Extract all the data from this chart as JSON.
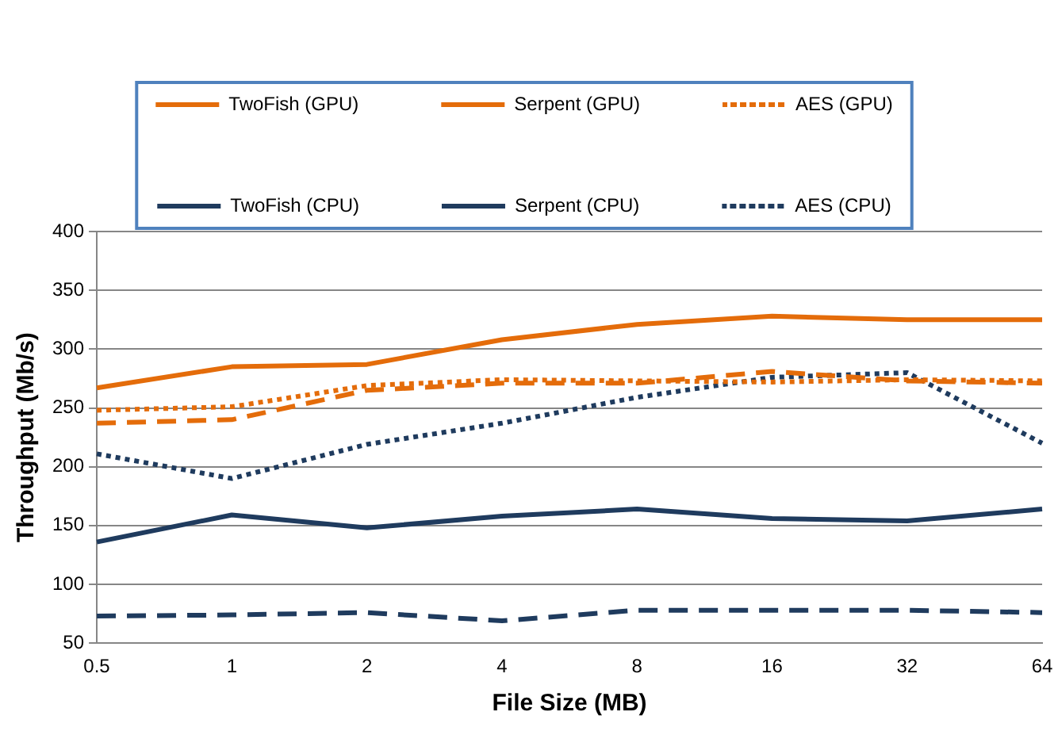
{
  "chart_data": {
    "type": "line",
    "xlabel": "File Size (MB)",
    "ylabel": "Throughput (Mb/s)",
    "categories": [
      "0.5",
      "1",
      "2",
      "4",
      "8",
      "16",
      "32",
      "64"
    ],
    "ylim": [
      50,
      400
    ],
    "yticks": [
      50,
      100,
      150,
      200,
      250,
      300,
      350,
      400
    ],
    "grid": "y",
    "legend": "top",
    "marker": "none",
    "series": [
      {
        "name": "TwoFish (GPU)",
        "color": "#e46c0a",
        "line_style": "solid",
        "values": [
          267,
          285,
          287,
          308,
          321,
          328,
          325,
          325
        ]
      },
      {
        "name": "Serpent (GPU)",
        "color": "#e46c0a",
        "line_style": "dashed",
        "values": [
          237,
          240,
          265,
          271,
          271,
          281,
          273,
          271
        ]
      },
      {
        "name": "AES (GPU)",
        "color": "#e46c0a",
        "line_style": "dotted",
        "values": [
          248,
          251,
          269,
          274,
          273,
          272,
          274,
          273
        ]
      },
      {
        "name": "TwoFish (CPU)",
        "color": "#1f3b5e",
        "line_style": "solid",
        "values": [
          136,
          159,
          148,
          158,
          164,
          156,
          154,
          164
        ]
      },
      {
        "name": "Serpent (CPU)",
        "color": "#1f3b5e",
        "line_style": "dashed",
        "values": [
          73,
          74,
          76,
          69,
          78,
          78,
          78,
          76
        ]
      },
      {
        "name": "AES (CPU)",
        "color": "#1f3b5e",
        "line_style": "dotted",
        "values": [
          211,
          190,
          219,
          237,
          259,
          276,
          280,
          220
        ]
      }
    ]
  }
}
